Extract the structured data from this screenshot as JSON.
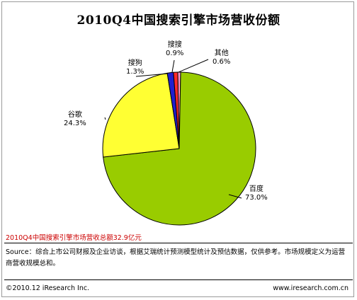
{
  "chart_data": {
    "type": "pie",
    "title": "2010Q4中国搜索引擎市场营收份额",
    "slices": [
      {
        "label": "百度",
        "value": 73.0,
        "display": "73.0%",
        "color": "#99cc00"
      },
      {
        "label": "谷歌",
        "value": 24.3,
        "display": "24.3%",
        "color": "#ffff33"
      },
      {
        "label": "搜狗",
        "value": 1.3,
        "display": "1.3%",
        "color": "#1f1fcf"
      },
      {
        "label": "搜搜",
        "value": 0.9,
        "display": "0.9%",
        "color": "#ff2a2a"
      },
      {
        "label": "其他",
        "value": 0.6,
        "display": "0.6%",
        "color": "#ff99cc"
      }
    ]
  },
  "note": "2010Q4中国搜索引擎市场营收总额32.9亿元",
  "source": "Source：综合上市公司财报及企业访谈，根据艾瑞统计预测模型统计及预估数据，仅供参考。市场规模定义为运营商营收规模总和。",
  "footer": {
    "copyright": "©2010.12 iResearch Inc.",
    "website": "www.iresearch.com.cn"
  }
}
